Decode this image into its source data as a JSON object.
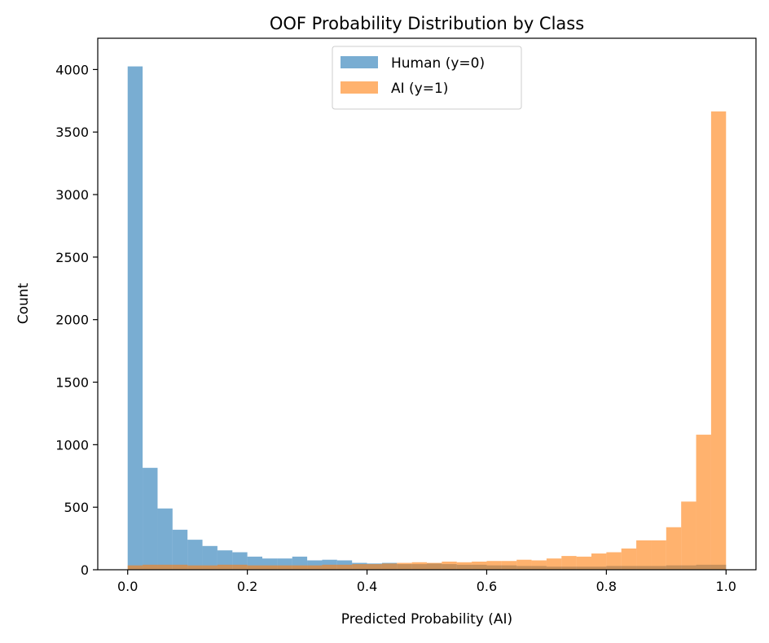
{
  "chart_data": {
    "type": "histogram",
    "title": "OOF Probability Distribution by Class",
    "xlabel": "Predicted Probability (AI)",
    "ylabel": "Count",
    "xlim": [
      -0.05,
      1.05
    ],
    "ylim": [
      0,
      4250
    ],
    "xticks": [
      0.0,
      0.2,
      0.4,
      0.6,
      0.8,
      1.0
    ],
    "xtick_labels": [
      "0.0",
      "0.2",
      "0.4",
      "0.6",
      "0.8",
      "1.0"
    ],
    "yticks": [
      0,
      500,
      1000,
      1500,
      2000,
      2500,
      3000,
      3500,
      4000
    ],
    "ytick_labels": [
      "0",
      "500",
      "1000",
      "1500",
      "2000",
      "2500",
      "3000",
      "3500",
      "4000"
    ],
    "bin_range": [
      0.0,
      1.0
    ],
    "bin_width": 0.025,
    "grid": false,
    "legend_position": "top-center",
    "series": [
      {
        "name": "Human (y=0)",
        "color": "#1f77b4",
        "alpha": 0.6,
        "values": [
          4025,
          815,
          490,
          320,
          240,
          190,
          155,
          140,
          105,
          90,
          90,
          105,
          75,
          80,
          75,
          55,
          50,
          55,
          45,
          45,
          50,
          45,
          40,
          40,
          35,
          35,
          30,
          30,
          25,
          25,
          25,
          25,
          30,
          30,
          30,
          30,
          35,
          35,
          40,
          40
        ]
      },
      {
        "name": "AI (y=1)",
        "color": "#ff7f0e",
        "alpha": 0.6,
        "values": [
          35,
          40,
          40,
          40,
          35,
          35,
          40,
          40,
          35,
          35,
          35,
          35,
          35,
          40,
          40,
          45,
          45,
          50,
          55,
          60,
          55,
          65,
          60,
          65,
          70,
          70,
          80,
          75,
          90,
          110,
          105,
          130,
          140,
          170,
          235,
          235,
          340,
          545,
          1080,
          3665
        ]
      }
    ]
  }
}
